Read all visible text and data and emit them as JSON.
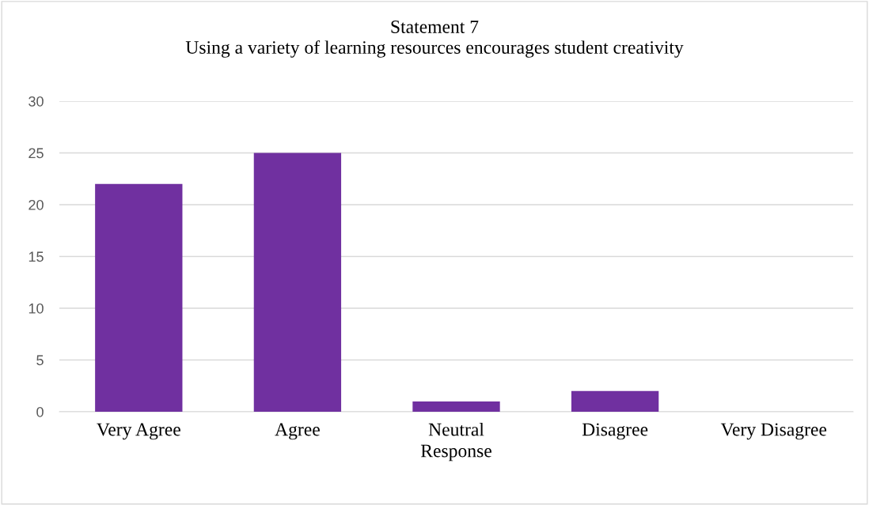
{
  "chart_data": {
    "type": "bar",
    "title": "Statement 7",
    "subtitle": "Using a variety of learning resources encourages student creativity",
    "xlabel": "Response",
    "categories": [
      "Very Agree",
      "Agree",
      "Neutral",
      "Disagree",
      "Very Disagree"
    ],
    "values": [
      22,
      25,
      1,
      2,
      0
    ],
    "color": "#7030a0",
    "ylim": [
      0,
      30
    ],
    "yticks": [
      0,
      5,
      10,
      15,
      20,
      25,
      30
    ],
    "grid": "y",
    "legend": false
  }
}
